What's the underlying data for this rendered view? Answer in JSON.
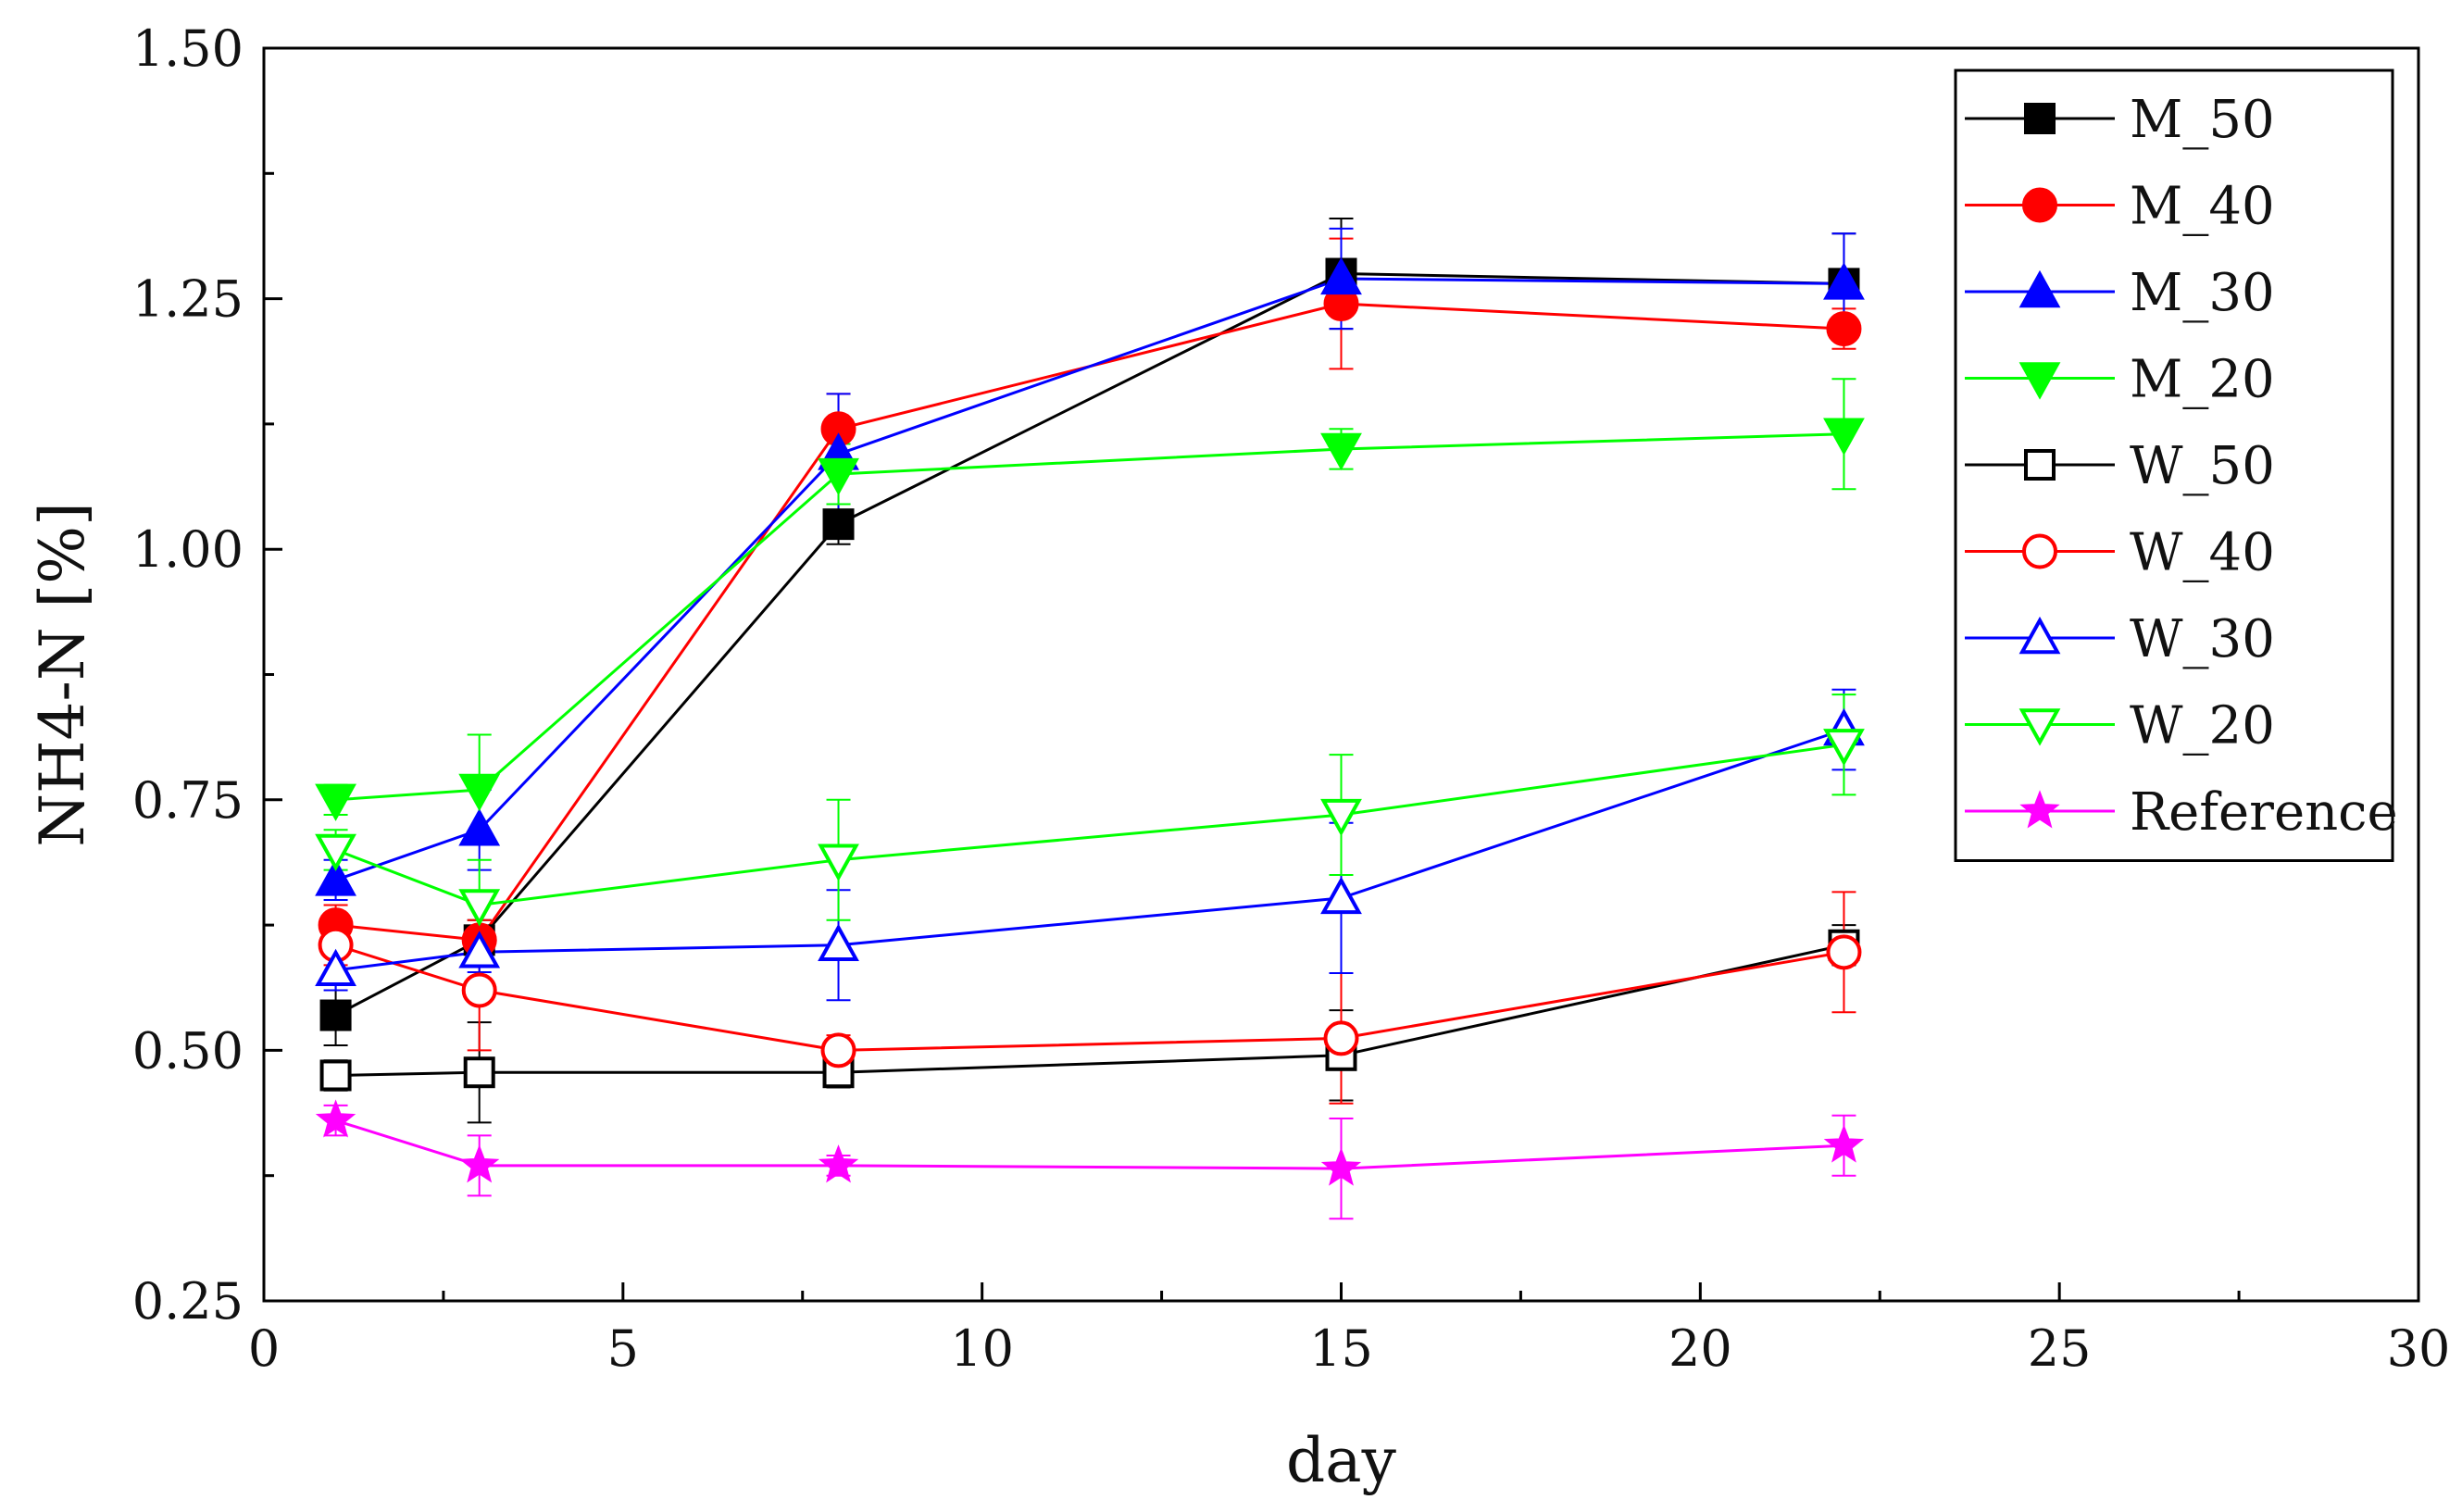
{
  "chart_data": {
    "type": "line",
    "title": "",
    "xlabel": "day",
    "ylabel": "NH4-N [%]",
    "xlim": [
      0,
      30
    ],
    "ylim": [
      0.25,
      1.5
    ],
    "xticks": [
      0,
      5,
      10,
      15,
      20,
      25,
      30
    ],
    "yticks": [
      0.25,
      0.5,
      0.75,
      1.0,
      1.25,
      1.5
    ],
    "xtick_labels": [
      "0",
      "5",
      "10",
      "15",
      "20",
      "25",
      "30"
    ],
    "ytick_labels": [
      "0.25",
      "0.50",
      "0.75",
      "1.00",
      "1.25",
      "1.50"
    ],
    "grid": false,
    "legend_position": "top-right",
    "x": [
      1,
      3,
      8,
      15,
      22
    ],
    "series": [
      {
        "name": "M_50",
        "color": "#000000",
        "marker": "square",
        "filled": true,
        "values": [
          0.535,
          0.61,
          1.025,
          1.275,
          1.265
        ],
        "errors": [
          0.03,
          0.02,
          0.02,
          0.055,
          0.05
        ]
      },
      {
        "name": "M_40",
        "color": "#ff0000",
        "marker": "circle",
        "filled": true,
        "values": [
          0.625,
          0.61,
          1.12,
          1.245,
          1.22
        ],
        "errors": [
          0.02,
          0.02,
          0.035,
          0.065,
          0.02
        ]
      },
      {
        "name": "M_30",
        "color": "#0000ff",
        "marker": "triangle-up",
        "filled": true,
        "values": [
          0.67,
          0.72,
          1.095,
          1.27,
          1.265
        ],
        "errors": [
          0.02,
          0.04,
          0.06,
          0.05,
          0.05
        ]
      },
      {
        "name": "M_20",
        "color": "#00ff00",
        "marker": "triangle-down",
        "filled": true,
        "values": [
          0.75,
          0.76,
          1.075,
          1.1,
          1.115
        ],
        "errors": [
          0.015,
          0.055,
          0.03,
          0.02,
          0.055
        ]
      },
      {
        "name": "W_50",
        "color": "#000000",
        "marker": "square",
        "filled": false,
        "values": [
          0.475,
          0.478,
          0.478,
          0.495,
          0.605
        ],
        "errors": [
          0.015,
          0.05,
          0.015,
          0.045,
          0.02
        ]
      },
      {
        "name": "W_40",
        "color": "#ff0000",
        "marker": "circle",
        "filled": false,
        "values": [
          0.605,
          0.56,
          0.5,
          0.512,
          0.598
        ],
        "errors": [
          0.02,
          0.06,
          0.015,
          0.065,
          0.06
        ]
      },
      {
        "name": "W_30",
        "color": "#0000ff",
        "marker": "triangle-up",
        "filled": false,
        "values": [
          0.58,
          0.598,
          0.605,
          0.652,
          0.82
        ],
        "errors": [
          0.02,
          0.02,
          0.055,
          0.075,
          0.04
        ]
      },
      {
        "name": "W_20",
        "color": "#00ff00",
        "marker": "triangle-down",
        "filled": false,
        "values": [
          0.7,
          0.645,
          0.69,
          0.735,
          0.805
        ],
        "errors": [
          0.02,
          0.045,
          0.06,
          0.06,
          0.05
        ]
      },
      {
        "name": "Reference",
        "color": "#ff00ff",
        "marker": "star",
        "filled": true,
        "values": [
          0.43,
          0.385,
          0.385,
          0.382,
          0.405
        ],
        "errors": [
          0.015,
          0.03,
          0.01,
          0.05,
          0.03
        ]
      }
    ]
  }
}
